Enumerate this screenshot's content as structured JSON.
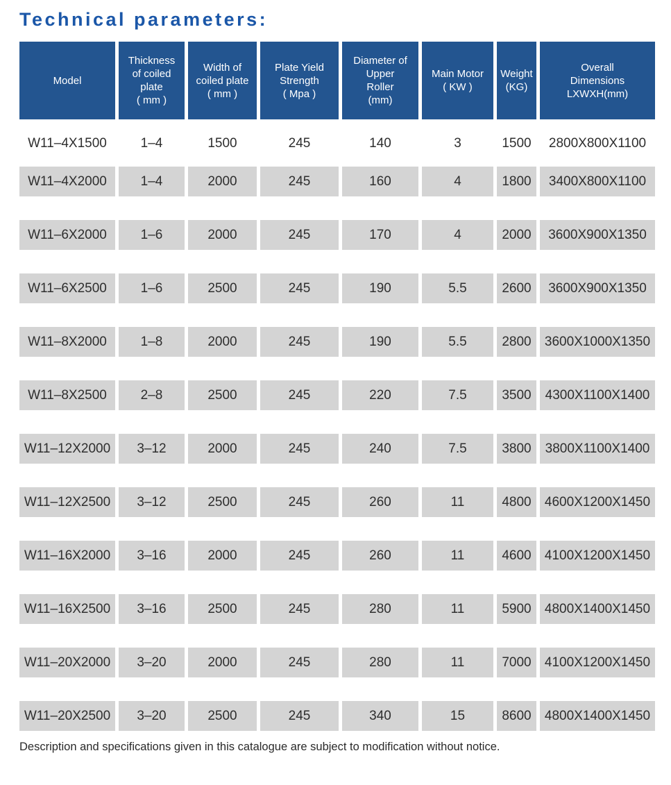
{
  "title": "Technical parameters:",
  "footer": "Description and specifications given in this catalogue are subject to modification without notice.",
  "colors": {
    "title_blue": "#1b57a8",
    "header_blue": "#235590",
    "row_gray": "#d4d4d4",
    "text": "#2e2e2e"
  },
  "table": {
    "columns": [
      {
        "id": "model",
        "label": "Model"
      },
      {
        "id": "thickness",
        "label": "Thickness\nof coiled\nplate\n( mm )"
      },
      {
        "id": "width",
        "label": "Width of\ncoiled plate\n( mm )"
      },
      {
        "id": "yield-strength",
        "label": "Plate Yield\nStrength\n( Mpa )"
      },
      {
        "id": "upper-roller-diameter",
        "label": "Diameter of\nUpper\nRoller\n(mm)"
      },
      {
        "id": "main-motor",
        "label": "Main Motor\n( KW )"
      },
      {
        "id": "weight",
        "label": "Weight\n(KG)"
      },
      {
        "id": "overall-dimensions",
        "label": "Overall\nDimensions\nLXWXH(mm)"
      }
    ],
    "rows": [
      {
        "cells": [
          "W11–4X1500",
          "1–4",
          "1500",
          "245",
          "140",
          "3",
          "1500",
          "2800X800X1100"
        ]
      },
      {
        "cells": [
          "W11–4X2000",
          "1–4",
          "2000",
          "245",
          "160",
          "4",
          "1800",
          "3400X800X1100"
        ]
      },
      {
        "cells": [
          "W11–6X2000",
          "1–6",
          "2000",
          "245",
          "170",
          "4",
          "2000",
          "3600X900X1350"
        ]
      },
      {
        "cells": [
          "W11–6X2500",
          "1–6",
          "2500",
          "245",
          "190",
          "5.5",
          "2600",
          "3600X900X1350"
        ]
      },
      {
        "cells": [
          "W11–8X2000",
          "1–8",
          "2000",
          "245",
          "190",
          "5.5",
          "2800",
          "3600X1000X1350"
        ]
      },
      {
        "cells": [
          "W11–8X2500",
          "2–8",
          "2500",
          "245",
          "220",
          "7.5",
          "3500",
          "4300X1100X1400"
        ]
      },
      {
        "cells": [
          "W11–12X2000",
          "3–12",
          "2000",
          "245",
          "240",
          "7.5",
          "3800",
          "3800X1100X1400"
        ]
      },
      {
        "cells": [
          "W11–12X2500",
          "3–12",
          "2500",
          "245",
          "260",
          "11",
          "4800",
          "4600X1200X1450"
        ]
      },
      {
        "cells": [
          "W11–16X2000",
          "3–16",
          "2000",
          "245",
          "260",
          "11",
          "4600",
          "4100X1200X1450"
        ]
      },
      {
        "cells": [
          "W11–16X2500",
          "3–16",
          "2500",
          "245",
          "280",
          "11",
          "5900",
          "4800X1400X1450"
        ]
      },
      {
        "cells": [
          "W11–20X2000",
          "3–20",
          "2000",
          "245",
          "280",
          "11",
          "7000",
          "4100X1200X1450"
        ]
      },
      {
        "cells": [
          "W11–20X2500",
          "3–20",
          "2500",
          "245",
          "340",
          "15",
          "8600",
          "4800X1400X1450"
        ]
      }
    ]
  }
}
